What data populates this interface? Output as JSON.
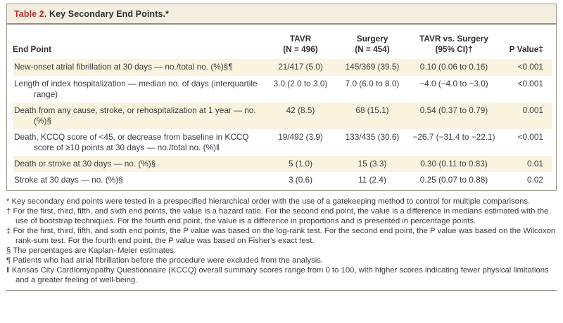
{
  "title": {
    "label": "Table 2.",
    "text": "Key Secondary End Points.*"
  },
  "header": {
    "end_point": "End Point",
    "tavr_line1": "TAVR",
    "tavr_line2": "(N = 496)",
    "surgery_line1": "Surgery",
    "surgery_line2": "(N = 454)",
    "comparison_line1": "TAVR vs. Surgery",
    "comparison_line2": "(95% CI)†",
    "p_value": "P Value‡"
  },
  "rows": [
    {
      "end_point": "New-onset atrial fibrillation at 30 days — no./total no. (%)§¶",
      "tavr": "21/417 (5.0)",
      "surgery": "145/369 (39.5)",
      "comparison": "0.10 (0.06 to 0.16)",
      "p_value": "<0.001"
    },
    {
      "end_point": "Length of index hospitalization — median no. of days (interquartile range)",
      "tavr": "3.0 (2.0 to 3.0)",
      "surgery": "7.0 (6.0 to 8.0)",
      "comparison": "−4.0 (−4.0 to −3.0)",
      "p_value": "<0.001"
    },
    {
      "end_point": "Death from any cause, stroke, or rehospitalization at 1 year — no. (%)§",
      "tavr": "42 (8.5)",
      "surgery": "68 (15.1)",
      "comparison": "0.54 (0.37 to 0.79)",
      "p_value": "0.001"
    },
    {
      "end_point": "Death, KCCQ score of <45, or decrease from baseline in KCCQ score of ≥10 points at 30 days — no./total no. (%)‖",
      "tavr": "19/492 (3.9)",
      "surgery": "133/435 (30.6)",
      "comparison": "−26.7 (−31.4 to −22.1)",
      "p_value": "<0.001"
    },
    {
      "end_point": "Death or stroke at 30 days — no. (%)§",
      "tavr": "5 (1.0)",
      "surgery": "15 (3.3)",
      "comparison": "0.30 (0.11 to 0.83)",
      "p_value": "0.01"
    },
    {
      "end_point": "Stroke at 30 days — no. (%)§",
      "tavr": "3 (0.6)",
      "surgery": "11 (2.4)",
      "comparison": "0.25 (0.07 to 0.88)",
      "p_value": "0.02"
    }
  ],
  "footnotes": [
    {
      "symbol": "*",
      "text": "Key secondary end points were tested in a prespecified hierarchical order with the use of a gatekeeping method to control for multiple comparisons."
    },
    {
      "symbol": "†",
      "text": "For the first, third, fifth, and sixth end points, the value is a hazard ratio. For the second end point, the value is a difference in medians estimated with the use of bootstrap techniques. For the fourth end point, the value is a difference in proportions and is presented in percentage points."
    },
    {
      "symbol": "‡",
      "text": "For the first, third, fifth, and sixth end points, the P value was based on the log-rank test. For the second end point, the P value was based on the Wilcoxon rank-sum test. For the fourth end point, the P value was based on Fisher's exact test."
    },
    {
      "symbol": "§",
      "text": "The percentages are Kaplan–Meier estimates."
    },
    {
      "symbol": "¶",
      "text": "Patients who had atrial fibrillation before the procedure were excluded from the analysis."
    },
    {
      "symbol": "‖",
      "text": "Kansas City Cardiomyopathy Questionnaire (KCCQ) overall summary scores range from 0 to 100, with higher scores indicating fewer physical limitations and a greater feeling of well-being."
    }
  ],
  "colors": {
    "accent_red": "#b0342e",
    "title_bar_bg": "#f3eee0",
    "row_stripe_bg": "#faf3e0",
    "border_gray": "#9d988d"
  }
}
